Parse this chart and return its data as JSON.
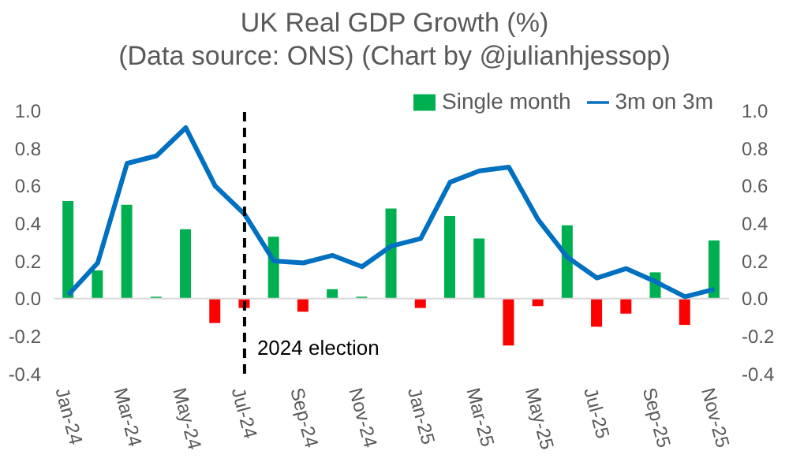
{
  "chart_data": {
    "type": "bar",
    "title": "UK Real GDP Growth (%)",
    "subtitle": "(Data source: ONS) (Chart by @julianhjessop)",
    "categories": [
      "Jan-24",
      null,
      "Mar-24",
      null,
      "May-24",
      null,
      "Jul-24",
      null,
      "Sep-24",
      null,
      "Nov-24",
      null,
      "Jan-25",
      null,
      "Mar-25",
      null,
      "May-25",
      null,
      "Jul-25",
      null,
      "Sep-25",
      null,
      "Nov-25"
    ],
    "series": [
      {
        "name": "Single month",
        "color": "#00b050",
        "colors": [
          "#00b050",
          "#00b050",
          "#00b050",
          "#00b050",
          "#00b050",
          "#ff0000",
          "#ff0000",
          "#00b050",
          "#ff0000",
          "#00b050",
          "#00b050",
          "#00b050",
          "#ff0000",
          "#00b050",
          "#00b050",
          "#ff0000",
          "#ff0000",
          "#00b050",
          "#ff0000",
          "#ff0000",
          "#00b050",
          "#ff0000",
          "#00b050"
        ],
        "values": [
          0.52,
          0.15,
          0.5,
          0.01,
          0.37,
          -0.13,
          -0.05,
          0.33,
          -0.07,
          0.05,
          0.01,
          0.48,
          -0.05,
          0.44,
          0.32,
          -0.25,
          -0.04,
          0.39,
          -0.15,
          -0.08,
          0.14,
          -0.14,
          0.31
        ]
      },
      {
        "name": "3m on 3m",
        "type": "line",
        "color": "#0070c0",
        "values": [
          0.02,
          0.19,
          0.72,
          0.76,
          0.91,
          0.6,
          0.45,
          0.2,
          0.19,
          0.23,
          0.17,
          0.28,
          0.32,
          0.62,
          0.68,
          0.7,
          0.42,
          0.22,
          0.11,
          0.16,
          0.09,
          0.01,
          0.05
        ]
      }
    ],
    "ylim": [
      -0.4,
      1.0
    ],
    "yticks": [
      {
        "value": -0.4,
        "label": "-0.4"
      },
      {
        "value": -0.2,
        "label": "-0.2"
      },
      {
        "value": 0,
        "label": "0.0"
      },
      {
        "value": 0.2,
        "label": "0.2"
      },
      {
        "value": 0.4,
        "label": "0.4"
      },
      {
        "value": 0.6,
        "label": "0.6"
      },
      {
        "value": 0.8,
        "label": "0.8"
      },
      {
        "value": 1.0,
        "label": "1.0"
      }
    ],
    "y2lim": [
      -0.4,
      1.0
    ],
    "y2ticks": [
      {
        "value": -0.4,
        "label": "-0.4"
      },
      {
        "value": -0.2,
        "label": "-0.2"
      },
      {
        "value": 0,
        "label": "0.0"
      },
      {
        "value": 0.2,
        "label": "0.2"
      },
      {
        "value": 0.4,
        "label": "0.4"
      },
      {
        "value": 0.6,
        "label": "0.6"
      },
      {
        "value": 0.8,
        "label": "0.8"
      },
      {
        "value": 1.0,
        "label": "1.0"
      }
    ],
    "ref_lines": [
      {
        "axis": "x",
        "value": "Jul-24",
        "label": "2024 election",
        "color": "#000000",
        "line_style": "dashed"
      }
    ],
    "legend": "top right",
    "marker": "none",
    "line_style": "solid"
  }
}
